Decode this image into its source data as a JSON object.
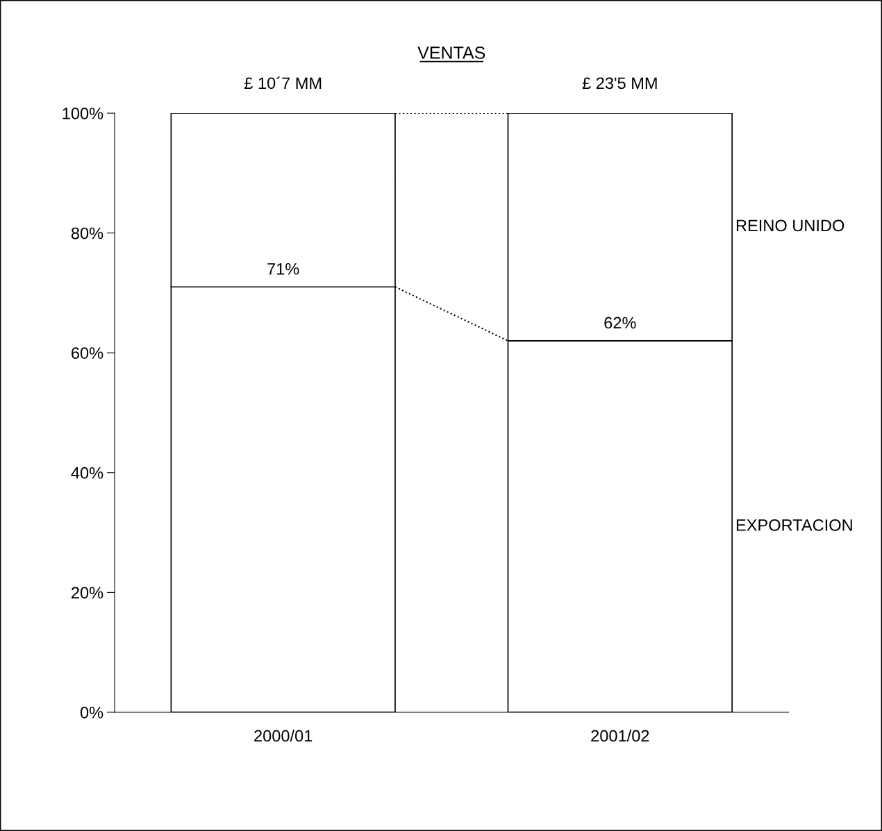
{
  "chart_data": {
    "type": "bar",
    "title": "VENTAS",
    "stacked": true,
    "categories": [
      "2000/01",
      "2001/02"
    ],
    "series": [
      {
        "name": "EXPORTACION",
        "color": "#ffffff",
        "values": [
          71,
          62
        ],
        "value_labels": [
          "71%",
          "62%"
        ]
      },
      {
        "name": "REINO UNIDO",
        "color": "#ffffff",
        "values": [
          29,
          38
        ]
      }
    ],
    "totals": [
      "£ 10´7 MM",
      "£ 23'5 MM"
    ],
    "ylim": [
      0,
      100
    ],
    "yticks": [
      {
        "value": 0,
        "label": "0%"
      },
      {
        "value": 20,
        "label": "20%"
      },
      {
        "value": 40,
        "label": "40%"
      },
      {
        "value": 60,
        "label": "60%"
      },
      {
        "value": 80,
        "label": "80%"
      },
      {
        "value": 100,
        "label": "100%"
      }
    ],
    "grid": false,
    "legend": false
  }
}
